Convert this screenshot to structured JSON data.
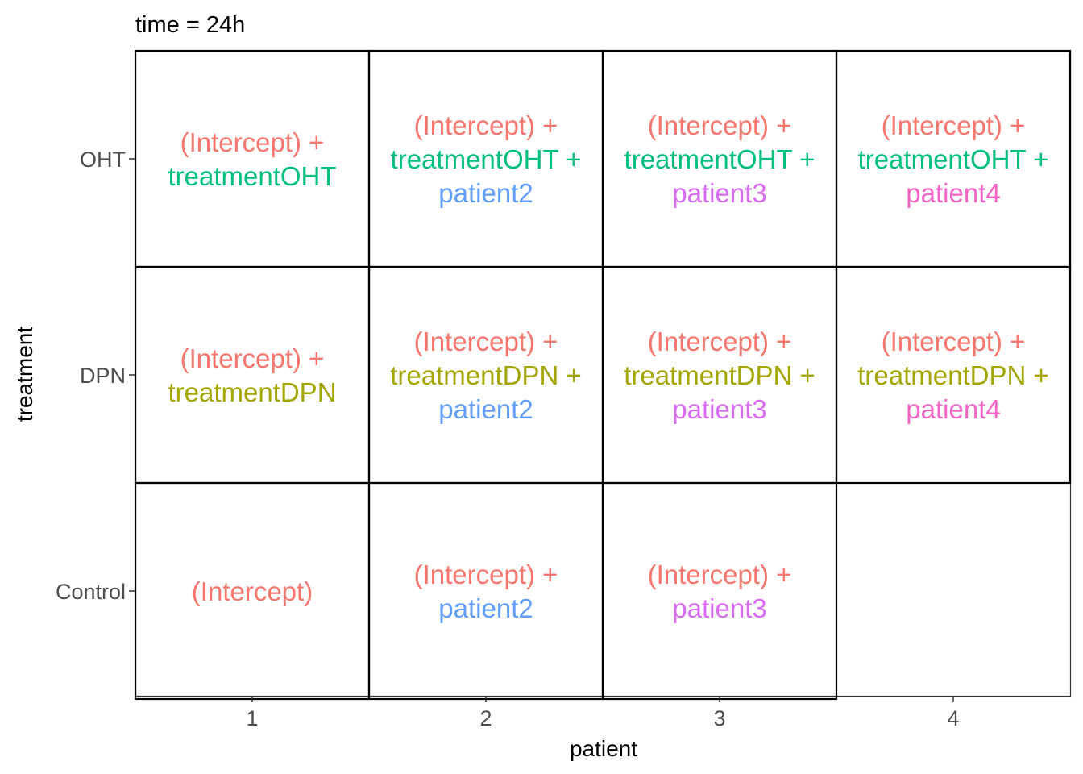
{
  "chart_data": {
    "type": "table",
    "title": "time = 24h",
    "xlabel": "patient",
    "ylabel": "treatment",
    "x_categories": [
      "1",
      "2",
      "3",
      "4"
    ],
    "y_categories": [
      "OHT",
      "DPN",
      "Control"
    ],
    "grid": false,
    "colors": {
      "(Intercept)": "#F8766D",
      "treatmentOHT": "#00BF7D",
      "treatmentDPN": "#A3A500",
      "patient2": "#619CFF",
      "patient3": "#D86CF2",
      "patient4": "#F464C6"
    },
    "cells": [
      {
        "treatment": "OHT",
        "patient": "1",
        "lines": [
          [
            {
              "text": "(Intercept) +",
              "term": "(Intercept)"
            }
          ],
          [
            {
              "text": "treatmentOHT",
              "term": "treatmentOHT"
            }
          ]
        ]
      },
      {
        "treatment": "OHT",
        "patient": "2",
        "lines": [
          [
            {
              "text": "(Intercept) +",
              "term": "(Intercept)"
            }
          ],
          [
            {
              "text": "treatmentOHT +",
              "term": "treatmentOHT"
            }
          ],
          [
            {
              "text": "patient2",
              "term": "patient2"
            }
          ]
        ]
      },
      {
        "treatment": "OHT",
        "patient": "3",
        "lines": [
          [
            {
              "text": "(Intercept) +",
              "term": "(Intercept)"
            }
          ],
          [
            {
              "text": "treatmentOHT +",
              "term": "treatmentOHT"
            }
          ],
          [
            {
              "text": "patient3",
              "term": "patient3"
            }
          ]
        ]
      },
      {
        "treatment": "OHT",
        "patient": "4",
        "lines": [
          [
            {
              "text": "(Intercept) +",
              "term": "(Intercept)"
            }
          ],
          [
            {
              "text": "treatmentOHT +",
              "term": "treatmentOHT"
            }
          ],
          [
            {
              "text": "patient4",
              "term": "patient4"
            }
          ]
        ]
      },
      {
        "treatment": "DPN",
        "patient": "1",
        "lines": [
          [
            {
              "text": "(Intercept) +",
              "term": "(Intercept)"
            }
          ],
          [
            {
              "text": "treatmentDPN",
              "term": "treatmentDPN"
            }
          ]
        ]
      },
      {
        "treatment": "DPN",
        "patient": "2",
        "lines": [
          [
            {
              "text": "(Intercept) +",
              "term": "(Intercept)"
            }
          ],
          [
            {
              "text": "treatmentDPN +",
              "term": "treatmentDPN"
            }
          ],
          [
            {
              "text": "patient2",
              "term": "patient2"
            }
          ]
        ]
      },
      {
        "treatment": "DPN",
        "patient": "3",
        "lines": [
          [
            {
              "text": "(Intercept) +",
              "term": "(Intercept)"
            }
          ],
          [
            {
              "text": "treatmentDPN +",
              "term": "treatmentDPN"
            }
          ],
          [
            {
              "text": "patient3",
              "term": "patient3"
            }
          ]
        ]
      },
      {
        "treatment": "DPN",
        "patient": "4",
        "lines": [
          [
            {
              "text": "(Intercept) +",
              "term": "(Intercept)"
            }
          ],
          [
            {
              "text": "treatmentDPN +",
              "term": "treatmentDPN"
            }
          ],
          [
            {
              "text": "patient4",
              "term": "patient4"
            }
          ]
        ]
      },
      {
        "treatment": "Control",
        "patient": "1",
        "lines": [
          [
            {
              "text": "(Intercept)",
              "term": "(Intercept)"
            }
          ]
        ]
      },
      {
        "treatment": "Control",
        "patient": "2",
        "lines": [
          [
            {
              "text": "(Intercept) +",
              "term": "(Intercept)"
            }
          ],
          [
            {
              "text": "patient2",
              "term": "patient2"
            }
          ]
        ]
      },
      {
        "treatment": "Control",
        "patient": "3",
        "lines": [
          [
            {
              "text": "(Intercept) +",
              "term": "(Intercept)"
            }
          ],
          [
            {
              "text": "patient3",
              "term": "patient3"
            }
          ]
        ]
      }
    ]
  }
}
